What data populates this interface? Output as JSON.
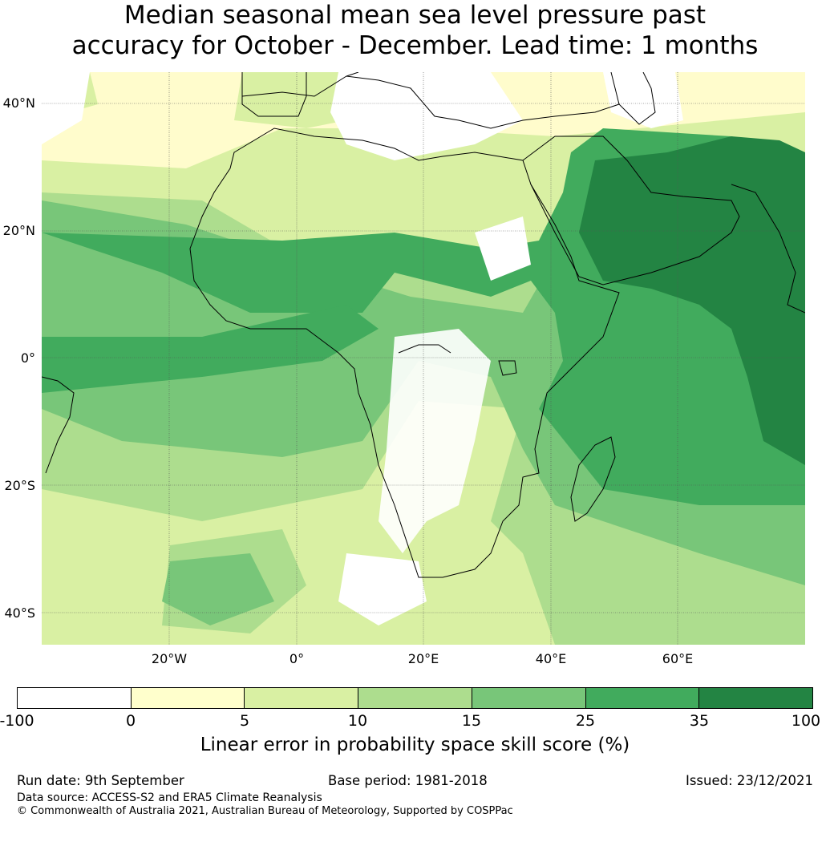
{
  "title_line1": "Median seasonal mean sea level pressure past",
  "title_line2": "accuracy for October - December. Lead time: 1 months",
  "map": {
    "lat_labels": [
      "40°N",
      "20°N",
      "0°",
      "20°S",
      "40°S"
    ],
    "lon_labels": [
      "20°W",
      "0°",
      "20°E",
      "40°E",
      "60°E"
    ],
    "region": "Africa",
    "lon_range": [
      -40,
      80
    ],
    "lat_range": [
      -45,
      45
    ]
  },
  "colorbar": {
    "ticks": [
      "-100",
      "0",
      "5",
      "10",
      "15",
      "25",
      "35",
      "100"
    ],
    "colors": [
      "#ffffff",
      "#ffffcc",
      "#d9f0a3",
      "#addd8e",
      "#78c679",
      "#41ab5d",
      "#238443"
    ],
    "label": "Linear error in probability space skill score (%)"
  },
  "footer": {
    "run_date": "Run date: 9th September",
    "base_period": "Base period: 1981-2018",
    "issued": "Issued: 23/12/2021",
    "data_source": "Data source: ACCESS-S2 and ERA5 Climate Reanalysis",
    "copyright": "© Commonwealth of Australia 2021, Australian Bureau of Meteorology, Supported by COSPPac"
  }
}
